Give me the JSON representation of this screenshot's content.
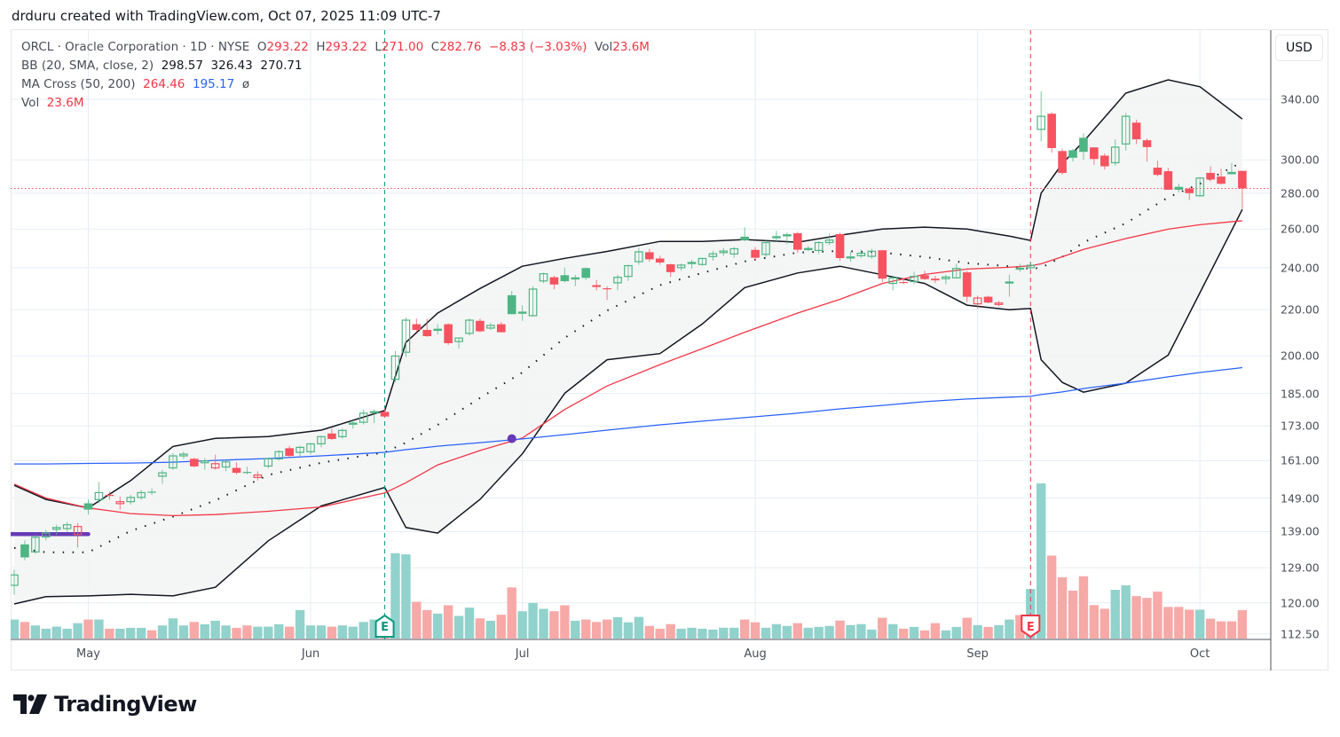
{
  "header": {
    "text": "drduru created with TradingView.com, Oct 07, 2025 11:09 UTC-7"
  },
  "legend": {
    "symbol_line": "ORCL · Oracle Corporation · 1D · NYSE",
    "o_label": "O",
    "o": "293.22",
    "h_label": "H",
    "h": "293.22",
    "l_label": "L",
    "l": "271.00",
    "c_label": "C",
    "c": "282.76",
    "change": "−8.83 (−3.03%)",
    "vol_label": "Vol",
    "vol": "23.6M",
    "bb_label": "BB (20, SMA, close, 2)",
    "bb_basis": "298.57",
    "bb_upper": "326.43",
    "bb_lower": "270.71",
    "ma_label": "MA Cross (50, 200)",
    "ma_fast": "264.46",
    "ma_slow": "195.17",
    "ma_cross_symbol": "ø",
    "vol_ind_label": "Vol",
    "vol_ind": "23.6M"
  },
  "currency_button": "USD",
  "logo": {
    "text": "TradingView"
  },
  "colors": {
    "up": "#4fb584",
    "down": "#f7525f",
    "vol_up": "#92d2cc",
    "vol_down": "#f7a9a7",
    "bb_line": "#131722",
    "bb_fill": "#f3f4f4",
    "ma_fast": "#f23645",
    "ma_slow": "#2962ff",
    "marker": "#673ab7",
    "earnings_past": "#089981",
    "earnings_recent": "#f23645"
  },
  "chart_data": {
    "type": "candlestick",
    "y_scale": "log",
    "ylim": [
      112.5,
      355
    ],
    "grid": true,
    "price_ticks": [
      "340.00",
      "300.00",
      "280.00",
      "260.00",
      "240.00",
      "220.00",
      "200.00",
      "185.00",
      "173.00",
      "161.00",
      "149.00",
      "139.00",
      "129.00",
      "120.00",
      "112.50"
    ],
    "time_ticks": [
      {
        "label": "May",
        "date": "2025-05-01"
      },
      {
        "label": "Jun",
        "date": "2025-06-02"
      },
      {
        "label": "Jul",
        "date": "2025-07-01"
      },
      {
        "label": "Aug",
        "date": "2025-08-01"
      },
      {
        "label": "Sep",
        "date": "2025-09-02"
      },
      {
        "label": "Oct",
        "date": "2025-10-01"
      }
    ],
    "candle_fields": [
      "date",
      "open",
      "high",
      "low",
      "close",
      "volume_millions"
    ],
    "candles": [
      [
        "2025-04-22",
        124.4,
        128.5,
        122,
        127.1,
        15.8
      ],
      [
        "2025-04-23",
        135.4,
        136.5,
        131,
        131.8,
        13.8
      ],
      [
        "2025-04-24",
        133.3,
        138,
        132.8,
        137.4,
        10.9
      ],
      [
        "2025-04-25",
        137.5,
        139.5,
        136.5,
        138.6,
        8.2
      ],
      [
        "2025-04-28",
        139.7,
        141,
        138,
        140.2,
        9.9
      ],
      [
        "2025-04-29",
        139.9,
        141.8,
        139,
        141,
        8.2
      ],
      [
        "2025-04-30",
        138.2,
        141.5,
        134.5,
        140.5,
        12.8
      ],
      [
        "2025-05-01",
        147.4,
        148.5,
        144,
        145.5,
        15.8
      ],
      [
        "2025-05-02",
        148.5,
        154,
        147.5,
        150.7,
        15.8
      ],
      [
        "2025-05-05",
        150,
        151,
        148.5,
        149.8,
        8.2
      ],
      [
        "2025-05-06",
        147.3,
        149.5,
        145.5,
        147.9,
        8.2
      ],
      [
        "2025-05-07",
        147.9,
        150,
        147,
        149.2,
        8.9
      ],
      [
        "2025-05-08",
        149.2,
        151.5,
        148.5,
        150.7,
        8.9
      ],
      [
        "2025-05-09",
        151,
        152,
        150,
        150.8,
        6.9
      ],
      [
        "2025-05-12",
        155.9,
        158,
        153.5,
        157,
        10.9
      ],
      [
        "2025-05-13",
        158.6,
        163.5,
        158,
        162.6,
        16.8
      ],
      [
        "2025-05-14",
        162.6,
        164,
        161.5,
        163.2,
        10.9
      ],
      [
        "2025-05-15",
        161.6,
        162,
        158.8,
        159.1,
        13.8
      ],
      [
        "2025-05-16",
        160.3,
        161.8,
        158,
        160.9,
        11.9
      ],
      [
        "2025-05-19",
        158.6,
        163,
        158,
        160,
        14.8
      ],
      [
        "2025-05-20",
        158.9,
        161.5,
        157.5,
        160.6,
        10.9
      ],
      [
        "2025-05-21",
        158.6,
        160.5,
        156.5,
        157,
        8.9
      ],
      [
        "2025-05-22",
        157.3,
        159,
        156.5,
        157.1,
        10.9
      ],
      [
        "2025-05-23",
        155.5,
        157.5,
        154.5,
        156.3,
        9.9
      ],
      [
        "2025-05-27",
        159.2,
        162,
        158.5,
        161.6,
        9.9
      ],
      [
        "2025-05-28",
        161.6,
        164.5,
        161,
        164,
        11.9
      ],
      [
        "2025-05-29",
        165.2,
        166,
        162,
        162.6,
        9.9
      ],
      [
        "2025-05-30",
        163.8,
        166,
        162.5,
        165.5,
        23.7
      ],
      [
        "2025-06-02",
        164,
        167,
        163,
        166.7,
        10.9
      ],
      [
        "2025-06-03",
        166.7,
        169.5,
        165.5,
        169.2,
        10.9
      ],
      [
        "2025-06-04",
        170.3,
        172,
        168,
        168.4,
        9.9
      ],
      [
        "2025-06-05",
        169.2,
        172,
        168.5,
        171.4,
        10.9
      ],
      [
        "2025-06-06",
        173.7,
        175,
        172,
        174,
        9.9
      ],
      [
        "2025-06-09",
        174.3,
        179,
        173.5,
        177.6,
        13.8
      ],
      [
        "2025-06-10",
        177.8,
        179,
        174,
        178.2,
        15.8
      ],
      [
        "2025-06-11",
        178.1,
        179.5,
        176,
        176.4,
        14
      ],
      [
        "2025-06-12",
        190.5,
        202,
        189.5,
        199.9,
        71
      ],
      [
        "2025-06-13",
        201.5,
        216.5,
        199.5,
        215.3,
        70
      ],
      [
        "2025-06-16",
        213.5,
        216,
        210,
        211,
        30.6
      ],
      [
        "2025-06-17",
        211,
        216,
        208,
        208.3,
        23.7
      ],
      [
        "2025-06-18",
        211,
        213.5,
        209,
        211.3,
        20.7
      ],
      [
        "2025-06-20",
        213.5,
        214,
        204.5,
        205.3,
        27.7
      ],
      [
        "2025-06-23",
        206,
        207.5,
        203,
        207.5,
        18.8
      ],
      [
        "2025-06-24",
        209.5,
        216,
        208.5,
        215.3,
        25.7
      ],
      [
        "2025-06-25",
        215,
        216,
        210,
        210.4,
        16.8
      ],
      [
        "2025-06-26",
        211.8,
        214,
        211,
        213,
        14.8
      ],
      [
        "2025-06-27",
        213.5,
        214.5,
        210,
        210,
        19.8
      ],
      [
        "2025-06-30",
        226.7,
        228.7,
        218,
        218,
        42.5
      ],
      [
        "2025-07-01",
        218.6,
        222,
        215,
        218.9,
        22.7
      ],
      [
        "2025-07-02",
        217.3,
        231,
        217,
        229.6,
        29.6
      ],
      [
        "2025-07-03",
        233.5,
        237.5,
        232.5,
        237,
        24.7
      ],
      [
        "2025-07-07",
        235.3,
        236,
        229.5,
        231.8,
        22.7
      ],
      [
        "2025-07-08",
        236.3,
        240,
        232.8,
        233.4,
        27.7
      ],
      [
        "2025-07-09",
        234.6,
        236.5,
        231,
        235,
        14.8
      ],
      [
        "2025-07-10",
        239.8,
        240.2,
        234,
        235,
        15.8
      ],
      [
        "2025-07-11",
        231.5,
        234,
        229,
        230.6,
        13.8
      ],
      [
        "2025-07-14",
        230,
        231,
        224.5,
        229.7,
        15.8
      ],
      [
        "2025-07-15",
        232.6,
        236.5,
        229,
        235.3,
        17.8
      ],
      [
        "2025-07-16",
        235.7,
        241.5,
        233.5,
        241,
        13.5
      ],
      [
        "2025-07-17",
        243,
        250,
        241.5,
        248,
        18
      ],
      [
        "2025-07-18",
        247.8,
        249.5,
        243,
        244.2,
        10.5
      ],
      [
        "2025-07-21",
        244.6,
        246,
        241.5,
        242.6,
        8.2
      ],
      [
        "2025-07-22",
        241.7,
        242,
        235.5,
        237.8,
        12
      ],
      [
        "2025-07-23",
        240,
        242,
        238.5,
        241.3,
        8.2
      ],
      [
        "2025-07-24",
        242.4,
        244,
        239.5,
        242.6,
        9
      ],
      [
        "2025-07-25",
        241.6,
        245,
        241,
        244.6,
        8.2
      ],
      [
        "2025-07-28",
        245.6,
        248.5,
        243.5,
        247,
        7.5
      ],
      [
        "2025-07-29",
        247.6,
        250,
        246,
        248.4,
        9
      ],
      [
        "2025-07-30",
        246.9,
        250.5,
        245,
        249.6,
        9
      ],
      [
        "2025-07-31",
        255.9,
        260.9,
        253.5,
        254,
        15.8
      ],
      [
        "2025-08-01",
        249,
        250.5,
        243.5,
        245,
        13.5
      ],
      [
        "2025-08-04",
        246.7,
        254,
        245.5,
        252.8,
        9
      ],
      [
        "2025-08-05",
        255.6,
        259,
        253,
        255.9,
        12
      ],
      [
        "2025-08-06",
        256.5,
        258,
        252,
        256.9,
        10.5
      ],
      [
        "2025-08-07",
        257.7,
        258.5,
        247.5,
        249.1,
        12.8
      ],
      [
        "2025-08-08",
        249.4,
        251,
        248.5,
        249.7,
        9
      ],
      [
        "2025-08-11",
        248.7,
        253.5,
        247,
        252.8,
        9.7
      ],
      [
        "2025-08-12",
        252.8,
        257.5,
        251.5,
        254.1,
        10.5
      ],
      [
        "2025-08-13",
        257.3,
        258,
        243.5,
        244.8,
        15
      ],
      [
        "2025-08-14",
        245,
        248,
        243,
        245.4,
        11.2
      ],
      [
        "2025-08-15",
        246,
        249,
        245,
        247.3,
        12
      ],
      [
        "2025-08-18",
        245.7,
        249.5,
        244.5,
        248.3,
        7.5
      ],
      [
        "2025-08-19",
        248.8,
        249,
        233,
        234.6,
        17.3
      ],
      [
        "2025-08-20",
        232.3,
        236,
        229,
        235,
        12
      ],
      [
        "2025-08-21",
        233,
        235,
        232,
        232.8,
        8.2
      ],
      [
        "2025-08-22",
        233.2,
        238,
        232,
        235.7,
        9.7
      ],
      [
        "2025-08-25",
        236.3,
        238.5,
        234,
        234.4,
        6.8
      ],
      [
        "2025-08-26",
        234.6,
        236,
        232.5,
        233.8,
        12.8
      ],
      [
        "2025-08-27",
        234.6,
        236.5,
        232,
        235.4,
        6.8
      ],
      [
        "2025-08-28",
        235,
        242,
        235,
        239.6,
        9.7
      ],
      [
        "2025-08-29",
        237.7,
        238.5,
        223.5,
        226,
        17.3
      ],
      [
        "2025-09-02",
        222.7,
        226.5,
        220.5,
        225.4,
        11.2
      ],
      [
        "2025-09-03",
        226,
        226.5,
        223,
        223.3,
        9.7
      ],
      [
        "2025-09-04",
        222.4,
        224,
        221.5,
        223.1,
        11.2
      ],
      [
        "2025-09-05",
        232.5,
        236.5,
        226,
        233,
        15.8
      ],
      [
        "2025-09-08",
        240,
        242,
        238,
        239,
        19.5
      ],
      [
        "2025-09-09",
        240,
        243,
        238.5,
        241.2,
        41.2
      ],
      [
        "2025-09-10",
        319.5,
        345.7,
        311.6,
        328.3,
        129
      ],
      [
        "2025-09-11",
        330,
        331,
        304.5,
        307.4,
        69
      ],
      [
        "2025-09-12",
        305.5,
        307,
        291,
        292,
        51
      ],
      [
        "2025-09-15",
        306,
        307,
        299,
        301.3,
        39.8
      ],
      [
        "2025-09-16",
        314,
        317,
        300,
        305,
        51.8
      ],
      [
        "2025-09-17",
        307.8,
        308,
        297,
        300.5,
        27.8
      ],
      [
        "2025-09-18",
        302.6,
        304,
        294,
        296,
        24.8
      ],
      [
        "2025-09-19",
        298.2,
        313,
        296.5,
        308,
        40.5
      ],
      [
        "2025-09-22",
        310,
        330.5,
        306,
        328.3,
        44.3
      ],
      [
        "2025-09-23",
        324,
        326,
        310,
        313,
        35.3
      ],
      [
        "2025-09-24",
        312.4,
        313.5,
        299,
        308,
        33.8
      ],
      [
        "2025-09-25",
        295.2,
        299.5,
        290,
        290.8,
        39
      ],
      [
        "2025-09-26",
        293,
        295,
        282,
        282,
        26.3
      ],
      [
        "2025-09-29",
        283.7,
        285.5,
        280.5,
        282,
        26.3
      ],
      [
        "2025-09-30",
        282.6,
        283.5,
        276,
        280,
        24
      ],
      [
        "2025-10-01",
        278.5,
        289.5,
        278,
        288.9,
        24
      ],
      [
        "2025-10-02",
        292,
        296,
        287,
        288,
        16.5
      ],
      [
        "2025-10-03",
        289.8,
        294.5,
        285,
        285.5,
        14.3
      ],
      [
        "2025-10-06",
        292.6,
        298,
        291,
        291.2,
        14.3
      ],
      [
        "2025-10-07",
        293.22,
        293.22,
        271,
        282.76,
        23.6
      ]
    ],
    "indicator_dates": [
      "2025-04-22",
      "2025-04-25",
      "2025-05-01",
      "2025-05-07",
      "2025-05-13",
      "2025-05-19",
      "2025-05-27",
      "2025-06-03",
      "2025-06-11",
      "2025-06-13",
      "2025-06-18",
      "2025-06-25",
      "2025-07-01",
      "2025-07-08",
      "2025-07-14",
      "2025-07-21",
      "2025-07-25",
      "2025-07-31",
      "2025-08-07",
      "2025-08-13",
      "2025-08-19",
      "2025-08-25",
      "2025-08-29",
      "2025-09-05",
      "2025-09-09",
      "2025-09-10",
      "2025-09-12",
      "2025-09-16",
      "2025-09-22",
      "2025-09-26",
      "2025-10-01",
      "2025-10-07"
    ],
    "bb_upper": [
      153,
      148.6,
      146,
      154.5,
      165.8,
      168.6,
      169.2,
      171.5,
      178.6,
      205.6,
      218.5,
      229.9,
      240.7,
      244.7,
      248.2,
      253.4,
      253.4,
      254.4,
      253,
      256.7,
      260,
      261,
      260,
      256.2,
      253.9,
      280,
      297.7,
      311.5,
      344.4,
      354,
      349,
      326.43
    ],
    "bb_basis": [
      134.4,
      133.2,
      133.2,
      139.2,
      143.4,
      148.3,
      156.3,
      160.3,
      163.8,
      167.1,
      173.4,
      183.3,
      193.2,
      207.6,
      219.6,
      231.5,
      237.4,
      243.1,
      247.6,
      248.5,
      247.6,
      245.4,
      242.3,
      240.7,
      239.4,
      240,
      245.4,
      252.9,
      263.1,
      277.6,
      285.5,
      298.57
    ],
    "bb_lower": [
      119.7,
      121.5,
      121.7,
      122.1,
      121.7,
      123.9,
      136.4,
      146.6,
      152.3,
      140.2,
      138.6,
      148.6,
      163.3,
      185.1,
      198.4,
      200.9,
      213.6,
      230.3,
      237.4,
      240.7,
      236.5,
      232.3,
      222.1,
      220,
      220.6,
      198.4,
      189.3,
      185.5,
      189,
      200.3,
      227.9,
      270.71
    ],
    "ma50": [
      153.4,
      149,
      146,
      144.3,
      143.7,
      144,
      145,
      146.3,
      150.6,
      153.8,
      159.6,
      164.4,
      168.7,
      179,
      187.9,
      196.4,
      203,
      210,
      218.5,
      224.8,
      232.3,
      236.7,
      239.3,
      240.2,
      241,
      241.9,
      245.5,
      249.2,
      254.9,
      259.9,
      262.3,
      264.46
    ],
    "ma200": [
      159.9,
      159.9,
      160.1,
      160.2,
      160.5,
      161.1,
      161.7,
      162.6,
      163.8,
      164.7,
      165.9,
      167.1,
      168.4,
      169.9,
      171.5,
      173.4,
      174.7,
      176,
      177.6,
      179.2,
      180.5,
      181.9,
      182.9,
      183.6,
      183.9,
      184.6,
      185.6,
      186.9,
      189,
      191.5,
      193.2,
      195.17
    ],
    "golden_cross": {
      "date": "2025-06-30",
      "price": 168.5
    },
    "horizontal_line": {
      "start": "2025-04-22",
      "end": "2025-05-01",
      "price": 138.3
    },
    "last_price_line": 282.76,
    "earnings": [
      {
        "date": "2025-06-11",
        "label": "E",
        "status": "past"
      },
      {
        "date": "2025-09-09",
        "label": "E",
        "status": "recent"
      }
    ]
  }
}
